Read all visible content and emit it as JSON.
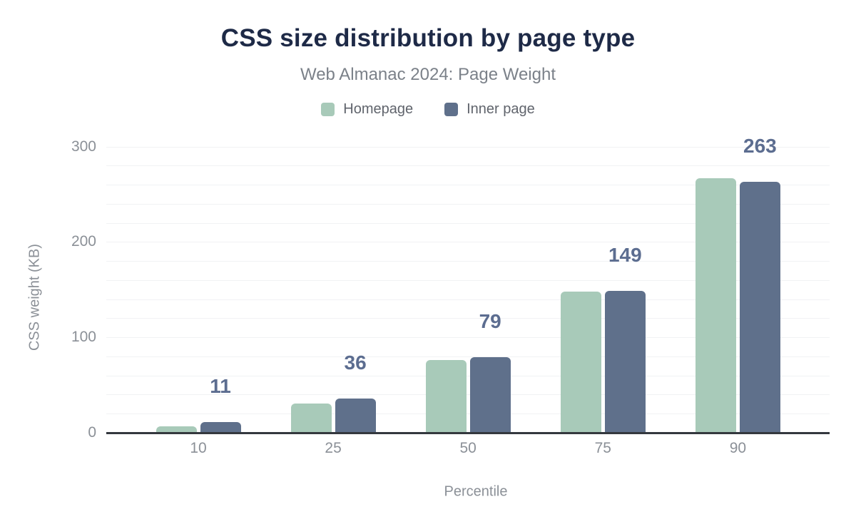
{
  "chart_data": {
    "type": "bar",
    "title": "CSS size distribution by page type",
    "subtitle": "Web Almanac 2024: Page Weight",
    "xlabel": "Percentile",
    "ylabel": "CSS weight (KB)",
    "categories": [
      "10",
      "25",
      "50",
      "75",
      "90"
    ],
    "series": [
      {
        "name": "Homepage",
        "color": "#a8cab9",
        "values": [
          7,
          31,
          76,
          148,
          267
        ]
      },
      {
        "name": "Inner page",
        "color": "#5f708b",
        "values": [
          11,
          36,
          79,
          149,
          263
        ]
      }
    ],
    "data_labels": {
      "on_series": "Inner page",
      "values": [
        "11",
        "36",
        "79",
        "149",
        "263"
      ],
      "color": "#5c6d90"
    },
    "ylim": [
      0,
      300
    ],
    "yticks": [
      0,
      100,
      200,
      300
    ],
    "grid": {
      "orientation": "horizontal",
      "interval": 20,
      "color": "#f1f2f4"
    },
    "legend_position": "top",
    "colors": {
      "title": "#1e2a47",
      "subtitle": "#7b8189",
      "axis_text": "#8b9097",
      "legend_text": "#60646c",
      "axis_line": "#34383e"
    }
  }
}
